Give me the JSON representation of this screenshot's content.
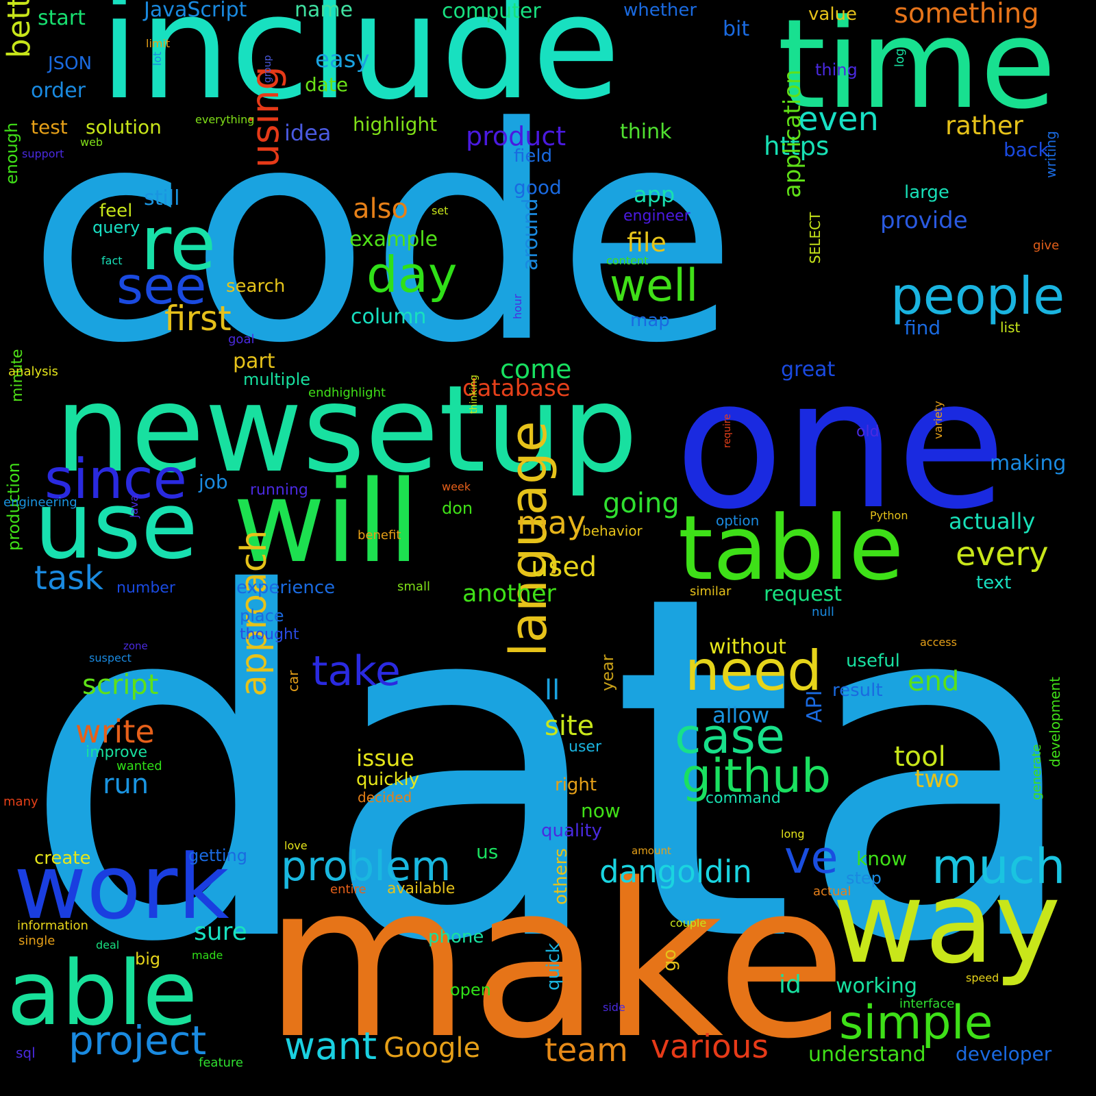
{
  "palette": {
    "background": "#000000",
    "blue": "#1aa3e0",
    "teal": "#18e0b8",
    "green": "#1de05a",
    "lime": "#c8e61a",
    "yellow": "#e6c21a",
    "orange": "#e67418",
    "red": "#e63a18",
    "indigo": "#2a2ae0",
    "violet": "#5a1ae0"
  },
  "words": [
    {
      "text": "code",
      "color": "#1aa3e0"
    },
    {
      "text": "data",
      "color": "#1aa3e0"
    },
    {
      "text": "include",
      "color": "#18e0c0"
    },
    {
      "text": "time",
      "color": "#18e090"
    },
    {
      "text": "make",
      "color": "#e67418"
    },
    {
      "text": "newsetup",
      "color": "#18e0a0"
    },
    {
      "text": "one",
      "color": "#1a2ae0"
    },
    {
      "text": "will",
      "color": "#1de050"
    },
    {
      "text": "table",
      "color": "#3ee018"
    },
    {
      "text": "use",
      "color": "#18e0b0"
    },
    {
      "text": "work",
      "color": "#1a3ee0"
    },
    {
      "text": "able",
      "color": "#18e09a"
    },
    {
      "text": "way",
      "color": "#c8e61a"
    },
    {
      "text": "re",
      "color": "#18e0a8"
    },
    {
      "text": "since",
      "color": "#2a2ae0"
    },
    {
      "text": "see",
      "color": "#1a4ae0"
    },
    {
      "text": "people",
      "color": "#1ab4e0"
    },
    {
      "text": "day",
      "color": "#30e018"
    },
    {
      "text": "well",
      "color": "#40e018"
    },
    {
      "text": "need",
      "color": "#e6d41a"
    },
    {
      "text": "language",
      "color": "#e6c21a"
    },
    {
      "text": "case",
      "color": "#18e08a"
    },
    {
      "text": "github",
      "color": "#1ae060"
    },
    {
      "text": "simple",
      "color": "#3ee018"
    },
    {
      "text": "much",
      "color": "#1ac4e0"
    },
    {
      "text": "ve",
      "color": "#1a4ee0"
    },
    {
      "text": "problem",
      "color": "#1ab8e0"
    },
    {
      "text": "project",
      "color": "#1a8ae0"
    },
    {
      "text": "want",
      "color": "#1ad0e0"
    },
    {
      "text": "Google",
      "color": "#e6a018"
    },
    {
      "text": "team",
      "color": "#e68a18"
    },
    {
      "text": "various",
      "color": "#e63a18"
    },
    {
      "text": "dangoldin",
      "color": "#1ad4e0"
    },
    {
      "text": "approach",
      "color": "#e6c21a"
    },
    {
      "text": "take",
      "color": "#2a2ae0"
    },
    {
      "text": "script",
      "color": "#60e018"
    },
    {
      "text": "write",
      "color": "#e6601a"
    },
    {
      "text": "first",
      "color": "#e6c01a"
    },
    {
      "text": "using",
      "color": "#e63a18"
    },
    {
      "text": "better",
      "color": "#c8e61a"
    },
    {
      "text": "something",
      "color": "#e6741a"
    },
    {
      "text": "even",
      "color": "#18e0c4"
    },
    {
      "text": "rather",
      "color": "#e6c21a"
    },
    {
      "text": "https",
      "color": "#18e0b4"
    },
    {
      "text": "product",
      "color": "#4a1ae0"
    },
    {
      "text": "also",
      "color": "#e68018"
    },
    {
      "text": "every",
      "color": "#c8e61a"
    },
    {
      "text": "may",
      "color": "#e6b41a"
    },
    {
      "text": "going",
      "color": "#30e030"
    },
    {
      "text": "task",
      "color": "#1a8ae0"
    },
    {
      "text": "end",
      "color": "#5ae018"
    },
    {
      "text": "site",
      "color": "#c8e61a"
    },
    {
      "text": "tool",
      "color": "#c8e61a"
    },
    {
      "text": "two",
      "color": "#e6c21a"
    },
    {
      "text": "issue",
      "color": "#e6e61a"
    },
    {
      "text": "run",
      "color": "#1a94e0"
    },
    {
      "text": "used",
      "color": "#e6d41a"
    },
    {
      "text": "another",
      "color": "#40e018"
    },
    {
      "text": "come",
      "color": "#18e060"
    },
    {
      "text": "file",
      "color": "#e6c41a"
    },
    {
      "text": "provide",
      "color": "#2a5ae0"
    },
    {
      "text": "application",
      "color": "#60e018"
    },
    {
      "text": "database",
      "color": "#e6401a"
    },
    {
      "text": "actually",
      "color": "#18e0b8"
    },
    {
      "text": "making",
      "color": "#1a8ae0"
    },
    {
      "text": "understand",
      "color": "#40e018"
    },
    {
      "text": "developer",
      "color": "#1a6ae0"
    },
    {
      "text": "JavaScript",
      "color": "#1a8ae0"
    },
    {
      "text": "name",
      "color": "#40e0a0"
    },
    {
      "text": "computer",
      "color": "#18e080"
    },
    {
      "text": "whether",
      "color": "#1a6ae0"
    },
    {
      "text": "value",
      "color": "#e6c21a"
    },
    {
      "text": "bit",
      "color": "#1a6ae0"
    },
    {
      "text": "easy",
      "color": "#1aa3e0"
    },
    {
      "text": "date",
      "color": "#6ae018"
    },
    {
      "text": "highlight",
      "color": "#80e018"
    },
    {
      "text": "think",
      "color": "#50e030"
    },
    {
      "text": "solution",
      "color": "#c8e61a"
    },
    {
      "text": "idea",
      "color": "#4a5ae0"
    },
    {
      "text": "start",
      "color": "#18e070"
    },
    {
      "text": "JSON",
      "color": "#1a6ae0"
    },
    {
      "text": "order",
      "color": "#1a8ae0"
    },
    {
      "text": "test",
      "color": "#e6a018"
    },
    {
      "text": "thing",
      "color": "#4a2ae0"
    },
    {
      "text": "back",
      "color": "#1a4ae0"
    },
    {
      "text": "field",
      "color": "#1a6ae0"
    },
    {
      "text": "good",
      "color": "#1a6ae0"
    },
    {
      "text": "app",
      "color": "#18e0b0"
    },
    {
      "text": "engineer",
      "color": "#4a1ae0"
    },
    {
      "text": "large",
      "color": "#18e0b8"
    },
    {
      "text": "still",
      "color": "#1a94e0"
    },
    {
      "text": "feel",
      "color": "#c8e61a"
    },
    {
      "text": "query",
      "color": "#18e0c4"
    },
    {
      "text": "example",
      "color": "#50e018"
    },
    {
      "text": "search",
      "color": "#e6c41a"
    },
    {
      "text": "column",
      "color": "#18e0c0"
    },
    {
      "text": "map",
      "color": "#1a6ae0"
    },
    {
      "text": "find",
      "color": "#1a6ae0"
    },
    {
      "text": "list",
      "color": "#c8e61a"
    },
    {
      "text": "part",
      "color": "#e6c21a"
    },
    {
      "text": "multiple",
      "color": "#18e0a0"
    },
    {
      "text": "great",
      "color": "#1a4ae0"
    },
    {
      "text": "around",
      "color": "#1a8ae0"
    },
    {
      "text": "SELECT",
      "color": "#c8e61a"
    },
    {
      "text": "job",
      "color": "#1a8ae0"
    },
    {
      "text": "running",
      "color": "#4a2ae0"
    },
    {
      "text": "don",
      "color": "#40e018"
    },
    {
      "text": "behavior",
      "color": "#e6c21a"
    },
    {
      "text": "option",
      "color": "#1a8ae0"
    },
    {
      "text": "old",
      "color": "#4a2ae0"
    },
    {
      "text": "ll",
      "color": "#1aa3e0"
    },
    {
      "text": "year",
      "color": "#c8a018"
    },
    {
      "text": "without",
      "color": "#e6e61a"
    },
    {
      "text": "useful",
      "color": "#18e0a0"
    },
    {
      "text": "allow",
      "color": "#1a94e0"
    },
    {
      "text": "result",
      "color": "#1a6ae0"
    },
    {
      "text": "API",
      "color": "#1a6ae0"
    },
    {
      "text": "request",
      "color": "#18e080"
    },
    {
      "text": "experience",
      "color": "#1a6ae0"
    },
    {
      "text": "number",
      "color": "#1a4ae0"
    },
    {
      "text": "text",
      "color": "#18e0c0"
    },
    {
      "text": "place",
      "color": "#1a6ae0"
    },
    {
      "text": "thought",
      "color": "#2a4ae0"
    },
    {
      "text": "right",
      "color": "#e6a018"
    },
    {
      "text": "now",
      "color": "#40e018"
    },
    {
      "text": "quality",
      "color": "#4a2ae0"
    },
    {
      "text": "command",
      "color": "#18e0b0"
    },
    {
      "text": "user",
      "color": "#1ab4e0"
    },
    {
      "text": "improve",
      "color": "#18e0a0"
    },
    {
      "text": "wanted",
      "color": "#30e018"
    },
    {
      "text": "quickly",
      "color": "#e6e61a"
    },
    {
      "text": "decided",
      "color": "#e68018"
    },
    {
      "text": "create",
      "color": "#e6e61a"
    },
    {
      "text": "getting",
      "color": "#1a6ae0"
    },
    {
      "text": "us",
      "color": "#1ae060"
    },
    {
      "text": "know",
      "color": "#40e018"
    },
    {
      "text": "step",
      "color": "#1a8ae0"
    },
    {
      "text": "others",
      "color": "#e6c21a"
    },
    {
      "text": "quick",
      "color": "#1ab4e0"
    },
    {
      "text": "go",
      "color": "#e6c21a"
    },
    {
      "text": "sure",
      "color": "#18e0c0"
    },
    {
      "text": "phone",
      "color": "#18e0a0"
    },
    {
      "text": "id",
      "color": "#18e0a0"
    },
    {
      "text": "working",
      "color": "#18e0a0"
    },
    {
      "text": "open",
      "color": "#30e018"
    },
    {
      "text": "available",
      "color": "#e6c21a"
    },
    {
      "text": "entire",
      "color": "#e6601a"
    },
    {
      "text": "actual",
      "color": "#e6801a"
    },
    {
      "text": "information",
      "color": "#e6d41a"
    },
    {
      "text": "single",
      "color": "#e6a018"
    },
    {
      "text": "deal",
      "color": "#18e080"
    },
    {
      "text": "made",
      "color": "#30e018"
    },
    {
      "text": "big",
      "color": "#e6d41a"
    },
    {
      "text": "sql",
      "color": "#4a2ae0"
    },
    {
      "text": "feature",
      "color": "#30e030"
    },
    {
      "text": "interface",
      "color": "#30e030"
    },
    {
      "text": "speed",
      "color": "#e6d41a"
    },
    {
      "text": "side",
      "color": "#4a2ae0"
    },
    {
      "text": "couple",
      "color": "#c8e61a"
    },
    {
      "text": "amount",
      "color": "#e6a018"
    },
    {
      "text": "long",
      "color": "#e6e61a"
    },
    {
      "text": "generate",
      "color": "#40e018"
    },
    {
      "text": "development",
      "color": "#40e018"
    },
    {
      "text": "love",
      "color": "#e6e61a"
    },
    {
      "text": "many",
      "color": "#e64018"
    },
    {
      "text": "production",
      "color": "#40e018"
    },
    {
      "text": "minute",
      "color": "#50e018"
    },
    {
      "text": "engineering",
      "color": "#1a94e0"
    },
    {
      "text": "analysis",
      "color": "#e6e61a"
    },
    {
      "text": "goal",
      "color": "#4a2ae0"
    },
    {
      "text": "hour",
      "color": "#4a2ae0"
    },
    {
      "text": "fact",
      "color": "#18e0b8"
    },
    {
      "text": "content",
      "color": "#40e018"
    },
    {
      "text": "set",
      "color": "#c8e61a"
    },
    {
      "text": "support",
      "color": "#4a2ae0"
    },
    {
      "text": "web",
      "color": "#80e018"
    },
    {
      "text": "everything",
      "color": "#80e018"
    },
    {
      "text": "group",
      "color": "#4a5ae0"
    },
    {
      "text": "lot",
      "color": "#1a8ae0"
    },
    {
      "text": "limit",
      "color": "#e6a018"
    },
    {
      "text": "log",
      "color": "#18e0a0"
    },
    {
      "text": "writing",
      "color": "#1a6ae0"
    },
    {
      "text": "give",
      "color": "#e6601a"
    },
    {
      "text": "enough",
      "color": "#40e018"
    },
    {
      "text": "suspect",
      "color": "#1a8ae0"
    },
    {
      "text": "zone",
      "color": "#4a2ae0"
    },
    {
      "text": "car",
      "color": "#e6a018"
    },
    {
      "text": "Java",
      "color": "#4a2ae0"
    },
    {
      "text": "benefit",
      "color": "#e6a018"
    },
    {
      "text": "small",
      "color": "#80e018"
    },
    {
      "text": "week",
      "color": "#e6601a"
    },
    {
      "text": "thinking",
      "color": "#c8e61a"
    },
    {
      "text": "require",
      "color": "#e6401a"
    },
    {
      "text": "variety",
      "color": "#e6a018"
    },
    {
      "text": "Python",
      "color": "#e6c21a"
    },
    {
      "text": "similar",
      "color": "#e6c21a"
    },
    {
      "text": "null",
      "color": "#1a8ae0"
    },
    {
      "text": "access",
      "color": "#e6a018"
    },
    {
      "text": "endhighlight",
      "color": "#40e018"
    }
  ]
}
